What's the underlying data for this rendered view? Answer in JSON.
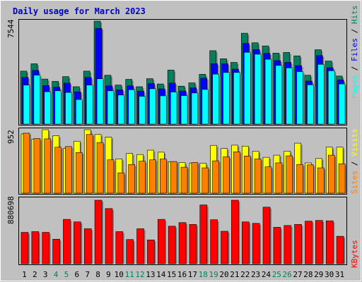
{
  "title": "Daily usage for March 2023",
  "colors": {
    "background": "#c0c0c0",
    "panel": "#c0c0c0",
    "title": "#0000cc",
    "hits": "#00805c",
    "files": "#0000ff",
    "pages": "#00ffff",
    "visits": "#ffff00",
    "sites": "#ff8000",
    "kbytes": "#ff0000",
    "weekend_label": "#008060",
    "weekday_label": "#000000"
  },
  "chart_data": [
    {
      "type": "bar",
      "name": "hits-files-pages",
      "y_tick_label": "7544",
      "ylim": [
        0,
        7544
      ],
      "right_labels": [
        "Pages",
        "Files",
        "Hits"
      ],
      "series": [
        {
          "name": "Hits",
          "values": [
            3880,
            4420,
            3300,
            3130,
            3480,
            2740,
            3880,
            7544,
            3580,
            2860,
            3280,
            2740,
            3330,
            2940,
            3960,
            2780,
            3020,
            3650,
            5380,
            4790,
            4520,
            6660,
            5960,
            5730,
            5200,
            5250,
            5000,
            3580,
            5450,
            4620,
            3520
          ]
        },
        {
          "name": "Files",
          "values": [
            3420,
            3930,
            2820,
            2700,
            3000,
            2360,
            3420,
            7020,
            2800,
            2510,
            2800,
            2420,
            2970,
            2580,
            3000,
            2420,
            2650,
            3360,
            4420,
            4420,
            4030,
            5910,
            5460,
            5180,
            4650,
            4520,
            4280,
            3150,
            5020,
            4130,
            3230
          ]
        },
        {
          "name": "Pages",
          "values": [
            2860,
            3590,
            2370,
            2440,
            2320,
            1800,
            2860,
            3320,
            2440,
            2130,
            2520,
            2040,
            2590,
            2070,
            2350,
            2090,
            2280,
            2540,
            3660,
            3780,
            3780,
            5260,
            5120,
            4750,
            4300,
            4120,
            3850,
            2880,
            4380,
            3910,
            2940
          ]
        }
      ]
    },
    {
      "type": "bar",
      "name": "visits-sites",
      "y_tick_label": "952",
      "ylim": [
        0,
        952
      ],
      "right_labels": [
        "Sites",
        "Visits"
      ],
      "series": [
        {
          "name": "Visits",
          "values": [
            889,
            810,
            952,
            862,
            670,
            780,
            952,
            880,
            840,
            515,
            597,
            580,
            645,
            615,
            470,
            461,
            453,
            450,
            717,
            670,
            720,
            706,
            630,
            538,
            570,
            630,
            750,
            455,
            520,
            690,
            690
          ]
        },
        {
          "name": "Sites",
          "values": [
            900,
            820,
            815,
            690,
            700,
            610,
            880,
            760,
            500,
            305,
            430,
            480,
            500,
            512,
            475,
            390,
            460,
            380,
            485,
            545,
            620,
            558,
            513,
            395,
            455,
            560,
            430,
            425,
            380,
            570,
            440
          ]
        }
      ]
    },
    {
      "type": "bar",
      "name": "kbytes",
      "y_tick_label": "880698",
      "ylim": [
        0,
        880698
      ],
      "right_labels": [
        "KBytes"
      ],
      "series": [
        {
          "name": "KBytes",
          "values": [
            435000,
            445000,
            435000,
            340000,
            615000,
            580000,
            485000,
            880698,
            765000,
            445000,
            335000,
            485000,
            330000,
            615000,
            520000,
            570000,
            545000,
            815000,
            610000,
            450000,
            880698,
            580000,
            560000,
            785000,
            505000,
            530000,
            545000,
            590000,
            600000,
            595000,
            380000
          ]
        }
      ]
    }
  ],
  "x_labels": [
    "1",
    "2",
    "3",
    "4",
    "5",
    "6",
    "7",
    "8",
    "9",
    "10",
    "11",
    "12",
    "13",
    "14",
    "15",
    "16",
    "17",
    "18",
    "19",
    "20",
    "21",
    "22",
    "23",
    "24",
    "25",
    "26",
    "27",
    "28",
    "29",
    "30",
    "31"
  ],
  "weekend_days": [
    4,
    5,
    11,
    12,
    18,
    19,
    25,
    26
  ]
}
